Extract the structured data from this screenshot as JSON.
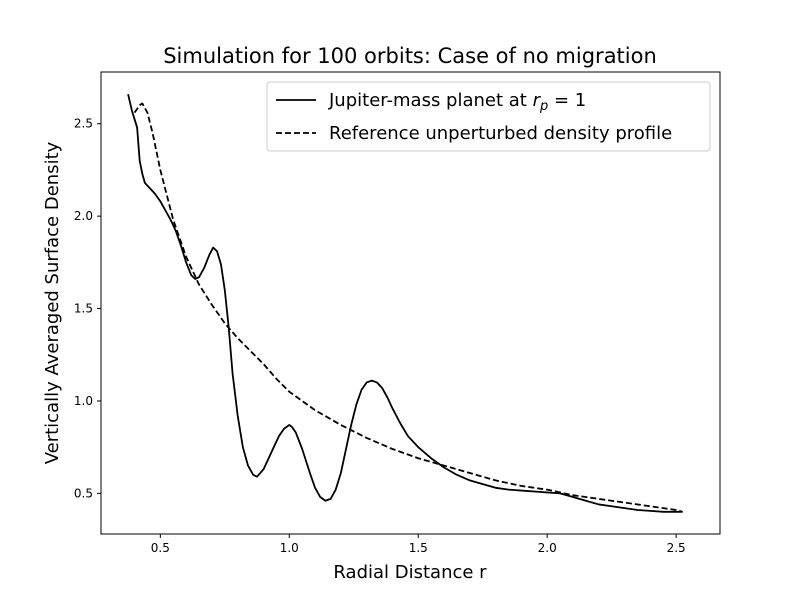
{
  "chart_data": {
    "type": "line",
    "title": "Simulation for 100 orbits: Case of no migration",
    "xlabel": "Radial Distance r",
    "ylabel": "Vertically Averaged Surface Density",
    "xlim": [
      0.27,
      2.67
    ],
    "ylim": [
      0.28,
      2.78
    ],
    "xticks": [
      0.5,
      1.0,
      1.5,
      2.0,
      2.5
    ],
    "xtick_labels": [
      "0.5",
      "1.0",
      "1.5",
      "2.0",
      "2.5"
    ],
    "yticks": [
      0.5,
      1.0,
      1.5,
      2.0,
      2.5
    ],
    "ytick_labels": [
      "0.5",
      "1.0",
      "1.5",
      "2.0",
      "2.5"
    ],
    "grid": false,
    "legend": {
      "location": "upper-right",
      "entries": [
        {
          "label_prefix": "Jupiter-mass planet at ",
          "label_var": "r",
          "label_sub": "p",
          "label_suffix": " = 1",
          "line_style": "solid"
        },
        {
          "label": "Reference unperturbed density profile",
          "line_style": "dashed"
        }
      ]
    },
    "series": [
      {
        "key": "perturbed",
        "line_style": "solid",
        "color": "#000000",
        "x": [
          0.375,
          0.39,
          0.41,
          0.42,
          0.43,
          0.44,
          0.46,
          0.48,
          0.5,
          0.52,
          0.54,
          0.56,
          0.58,
          0.6,
          0.62,
          0.635,
          0.65,
          0.67,
          0.69,
          0.705,
          0.72,
          0.735,
          0.75,
          0.765,
          0.78,
          0.8,
          0.82,
          0.84,
          0.86,
          0.875,
          0.9,
          0.92,
          0.94,
          0.96,
          0.98,
          1.0,
          1.01,
          1.025,
          1.05,
          1.08,
          1.1,
          1.12,
          1.14,
          1.16,
          1.18,
          1.2,
          1.22,
          1.24,
          1.26,
          1.28,
          1.3,
          1.32,
          1.34,
          1.36,
          1.38,
          1.4,
          1.43,
          1.46,
          1.5,
          1.55,
          1.6,
          1.65,
          1.7,
          1.75,
          1.8,
          1.85,
          1.9,
          1.95,
          2.0,
          2.05,
          2.1,
          2.15,
          2.2,
          2.25,
          2.3,
          2.35,
          2.4,
          2.45,
          2.5,
          2.525
        ],
        "values": [
          2.66,
          2.57,
          2.48,
          2.3,
          2.23,
          2.18,
          2.15,
          2.12,
          2.08,
          2.03,
          1.98,
          1.92,
          1.84,
          1.75,
          1.68,
          1.66,
          1.67,
          1.72,
          1.79,
          1.83,
          1.81,
          1.74,
          1.6,
          1.4,
          1.15,
          0.92,
          0.75,
          0.65,
          0.6,
          0.59,
          0.63,
          0.69,
          0.75,
          0.81,
          0.85,
          0.87,
          0.86,
          0.83,
          0.74,
          0.61,
          0.53,
          0.48,
          0.46,
          0.47,
          0.52,
          0.61,
          0.74,
          0.87,
          0.98,
          1.06,
          1.1,
          1.11,
          1.1,
          1.07,
          1.02,
          0.96,
          0.88,
          0.81,
          0.75,
          0.69,
          0.64,
          0.6,
          0.57,
          0.55,
          0.53,
          0.52,
          0.515,
          0.51,
          0.505,
          0.5,
          0.48,
          0.46,
          0.44,
          0.43,
          0.42,
          0.41,
          0.405,
          0.4,
          0.4,
          0.4
        ]
      },
      {
        "key": "reference",
        "line_style": "dashed",
        "color": "#000000",
        "x": [
          0.4,
          0.42,
          0.43,
          0.45,
          0.47,
          0.5,
          0.55,
          0.6,
          0.65,
          0.7,
          0.75,
          0.8,
          0.85,
          0.9,
          0.95,
          1.0,
          1.1,
          1.2,
          1.3,
          1.4,
          1.5,
          1.6,
          1.7,
          1.8,
          1.9,
          2.0,
          2.1,
          2.2,
          2.3,
          2.4,
          2.5,
          2.525
        ],
        "values": [
          2.56,
          2.6,
          2.61,
          2.56,
          2.45,
          2.25,
          1.98,
          1.78,
          1.63,
          1.52,
          1.42,
          1.34,
          1.27,
          1.2,
          1.12,
          1.05,
          0.95,
          0.87,
          0.8,
          0.74,
          0.69,
          0.65,
          0.61,
          0.57,
          0.54,
          0.52,
          0.49,
          0.47,
          0.45,
          0.43,
          0.41,
          0.4
        ]
      }
    ]
  }
}
